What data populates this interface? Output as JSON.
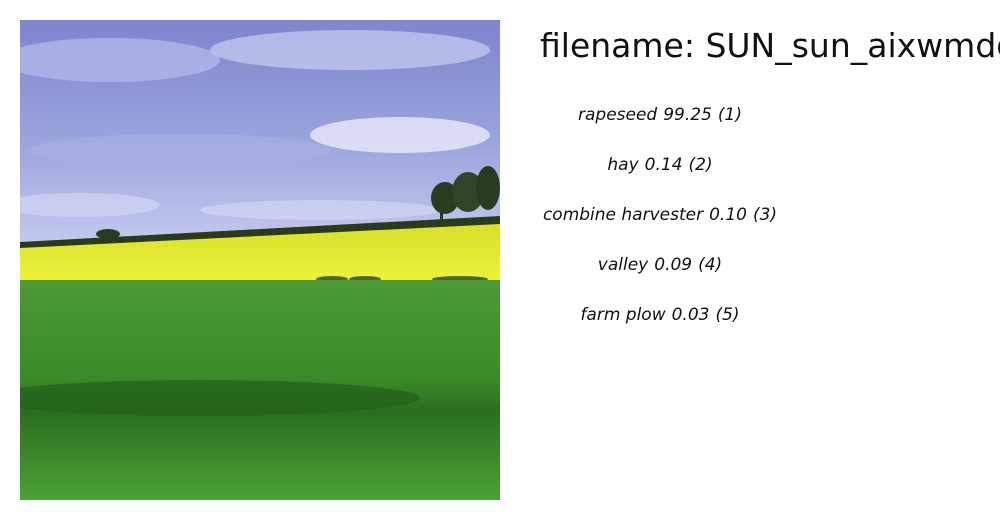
{
  "title_prefix": "filename: ",
  "filename": "SUN_sun_aixwmdg",
  "predictions": [
    {
      "label": "rapeseed",
      "score": "99.25",
      "rank": "(1)"
    },
    {
      "label": "hay",
      "score": "0.14",
      "rank": "(2)"
    },
    {
      "label": "combine harvester",
      "score": "0.10",
      "rank": "(3)"
    },
    {
      "label": "valley",
      "score": "0.09",
      "rank": "(4)"
    },
    {
      "label": "farm plow",
      "score": "0.03",
      "rank": "(5)"
    }
  ],
  "colors": {
    "sky": "#8b92d4",
    "rapeseed": "#e4ea2e",
    "grass": "#3f8f2c",
    "text": "#111111"
  }
}
